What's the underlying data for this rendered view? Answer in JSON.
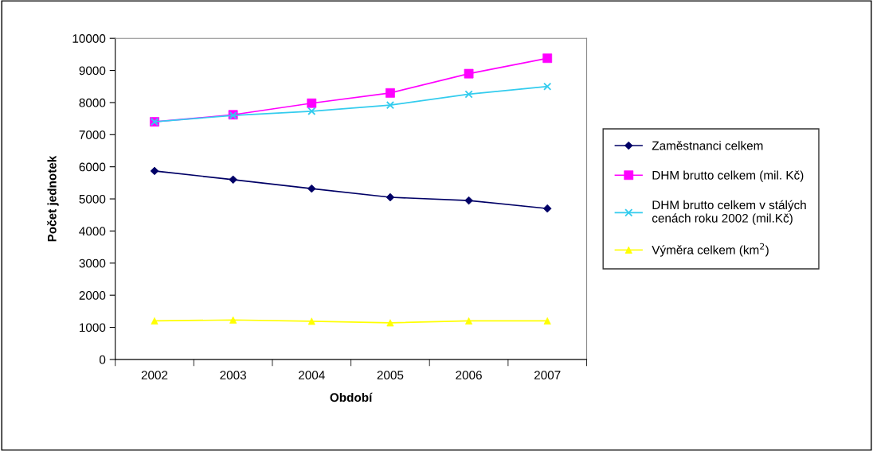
{
  "chart_data": {
    "type": "line",
    "xlabel": "Období",
    "ylabel": "Počet jednotek",
    "categories": [
      "2002",
      "2003",
      "2004",
      "2005",
      "2006",
      "2007"
    ],
    "series": [
      {
        "name": "Zaměstnanci celkem",
        "color": "#000066",
        "marker": "diamond",
        "values": [
          5870,
          5600,
          5320,
          5050,
          4950,
          4700
        ]
      },
      {
        "name": "DHM brutto celkem (mil. Kč)",
        "color": "#ff00ff",
        "marker": "square",
        "values": [
          7400,
          7620,
          7980,
          8300,
          8900,
          9380
        ]
      },
      {
        "name": "DHM brutto celkem v stálých\ncenách roku 2002 (mil.Kč)",
        "color": "#33ccee",
        "marker": "cross",
        "values": [
          7400,
          7600,
          7730,
          7920,
          8260,
          8500
        ]
      },
      {
        "name": "Výměra celkem (km$^{2}$)",
        "color": "#ffff00",
        "marker": "triangle",
        "values": [
          1200,
          1230,
          1190,
          1140,
          1200,
          1200
        ]
      }
    ],
    "ylim": [
      0,
      10000
    ],
    "yticks": [
      0,
      1000,
      2000,
      3000,
      4000,
      5000,
      6000,
      7000,
      8000,
      9000,
      10000
    ],
    "grid": false,
    "legend": "right",
    "line_style": "solid"
  }
}
